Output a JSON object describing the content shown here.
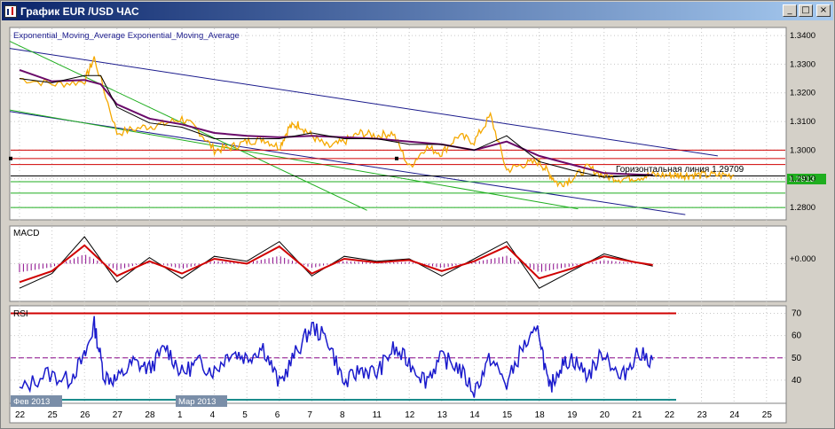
{
  "window": {
    "title": "График EUR /USD ЧАС",
    "buttons": {
      "minimize": "_",
      "maximize": "□",
      "close": "×"
    }
  },
  "price_panel": {
    "legend": "Exponential_Moving_Average Exponential_Moving_Average",
    "y_ticks": [
      "1.3400",
      "1.3300",
      "1.3200",
      "1.3100",
      "1.3000",
      "1.2900",
      "1.2800"
    ],
    "current_price": "1.2913",
    "hline_label": "Горизонтальная линия 1.29709",
    "colors": {
      "price": "#f5a800",
      "ema_fast": "#000000",
      "ema_slow": "#6a0a6a",
      "trend_blue": "#1a1a8c",
      "trend_green": "#1fae1f",
      "hline_red": "#d00000",
      "hline_green": "#1fae1f"
    }
  },
  "macd_panel": {
    "label": "MACD",
    "y_tick": "+0.000",
    "colors": {
      "histogram": "#8b0a8b",
      "macd": "#000000",
      "signal": "#d00000"
    }
  },
  "rsi_panel": {
    "label": "RSI",
    "y_ticks": [
      "70",
      "60",
      "50",
      "40"
    ],
    "colors": {
      "rsi": "#1a1acc",
      "level_high": "#d00000",
      "level_mid": "#8b0a8b",
      "level_low": "#1a8c8c"
    }
  },
  "x_axis": {
    "ticks": [
      "22",
      "25",
      "26",
      "27",
      "28",
      "1",
      "4",
      "5",
      "6",
      "7",
      "8",
      "11",
      "12",
      "13",
      "14",
      "15",
      "18",
      "19",
      "20",
      "21",
      "22",
      "23",
      "24",
      "25"
    ],
    "month_labels": [
      "Фев 2013",
      "Мар 2013"
    ]
  },
  "chart_data": {
    "type": "line",
    "instrument": "EUR /USD",
    "ylim": [
      1.276,
      1.3425
    ],
    "price": {
      "name": "EUR /USD",
      "x": [
        0,
        1.1,
        2,
        2.3,
        3,
        3.8,
        4.4,
        5,
        5.5,
        6,
        6.5,
        7,
        7.5,
        8,
        8.3,
        8.6,
        9,
        9.5,
        10,
        10.5,
        11,
        11.5,
        12,
        12.5,
        13,
        13.5,
        14,
        14.5,
        15,
        15.5,
        16,
        16.3,
        16.6,
        17,
        17.5,
        18,
        18.5,
        19,
        19.5,
        20,
        20.3,
        20.6,
        21,
        21.5,
        22
      ],
      "y": [
        1.325,
        1.323,
        1.324,
        1.3322,
        1.306,
        1.308,
        1.309,
        1.311,
        1.307,
        1.3,
        1.301,
        1.303,
        1.304,
        1.301,
        1.308,
        1.309,
        1.305,
        1.301,
        1.303,
        1.306,
        1.305,
        1.306,
        1.294,
        1.301,
        1.299,
        1.305,
        1.303,
        1.312,
        1.293,
        1.295,
        1.296,
        1.292,
        1.288,
        1.29,
        1.294,
        1.291,
        1.29,
        1.2905,
        1.2913,
        1.2913,
        1.2913,
        1.2913,
        1.2913,
        1.2913,
        1.2913
      ]
    },
    "ema_fast": {
      "x": [
        0,
        1,
        2,
        2.5,
        3,
        4,
        5,
        6,
        7,
        8,
        9,
        10,
        11,
        12,
        13,
        14,
        15,
        16,
        17,
        18,
        19,
        19.5
      ],
      "y": [
        1.325,
        1.3235,
        1.326,
        1.326,
        1.315,
        1.3095,
        1.308,
        1.304,
        1.304,
        1.304,
        1.306,
        1.304,
        1.304,
        1.302,
        1.302,
        1.3,
        1.305,
        1.296,
        1.293,
        1.2905,
        1.2912,
        1.2913
      ]
    },
    "ema_slow": {
      "x": [
        0,
        1,
        2,
        2.5,
        3,
        4,
        5,
        6,
        7,
        8,
        9,
        10,
        11,
        12,
        13,
        14,
        15,
        16,
        17,
        18,
        19,
        19.5
      ],
      "y": [
        1.328,
        1.324,
        1.3245,
        1.323,
        1.316,
        1.311,
        1.309,
        1.306,
        1.305,
        1.3045,
        1.305,
        1.3045,
        1.304,
        1.303,
        1.302,
        1.3,
        1.303,
        1.298,
        1.295,
        1.292,
        1.2915,
        1.2913
      ]
    },
    "horizontal_lines": [
      1.3,
      1.29709,
      1.295,
      1.291,
      1.289,
      1.285,
      1.28
    ],
    "macd": {
      "x": [
        0,
        1,
        2,
        3,
        4,
        5,
        6,
        7,
        8,
        9,
        10,
        11,
        12,
        13,
        14,
        15,
        16,
        17,
        18,
        19,
        19.5
      ],
      "y": [
        -0.002,
        -0.0008,
        0.0022,
        -0.0015,
        0.0005,
        -0.0012,
        0.0006,
        0.0002,
        0.0018,
        -0.001,
        0.0006,
        0.0002,
        0.0004,
        -0.001,
        0.0004,
        0.0018,
        -0.002,
        -0.0006,
        0.0008,
        0.0001,
        -0.0002
      ]
    },
    "macd_signal": {
      "x": [
        0,
        1,
        2,
        3,
        4,
        5,
        6,
        7,
        8,
        9,
        10,
        11,
        12,
        13,
        14,
        15,
        16,
        17,
        18,
        19,
        19.5
      ],
      "y": [
        -0.0015,
        -0.0006,
        0.0015,
        -0.001,
        0.0002,
        -0.0008,
        0.0004,
        0.0,
        0.0014,
        -0.0008,
        0.0004,
        0.0001,
        0.0003,
        -0.0006,
        0.0002,
        0.0014,
        -0.0012,
        -0.0004,
        0.0006,
        0.0001,
        -0.0001
      ]
    },
    "rsi": {
      "x": [
        0,
        0.8,
        1.5,
        2,
        2.3,
        2.6,
        3,
        3.5,
        4,
        4.5,
        5,
        5.5,
        6,
        6.5,
        7,
        7.5,
        8,
        8.5,
        9,
        9.5,
        10,
        10.5,
        11,
        11.5,
        12,
        12.5,
        13,
        13.5,
        14,
        14.5,
        15,
        15.5,
        16,
        16.3,
        16.6,
        17,
        17.5,
        18,
        18.5,
        19,
        19.5
      ],
      "y": [
        35,
        43,
        40,
        50,
        65,
        42,
        40,
        48,
        45,
        55,
        43,
        48,
        44,
        53,
        50,
        55,
        38,
        52,
        64,
        58,
        38,
        45,
        43,
        54,
        48,
        40,
        50,
        46,
        35,
        50,
        38,
        55,
        62,
        35,
        45,
        50,
        42,
        53,
        40,
        52,
        49
      ]
    },
    "rsi_levels": [
      70,
      50,
      30
    ]
  }
}
